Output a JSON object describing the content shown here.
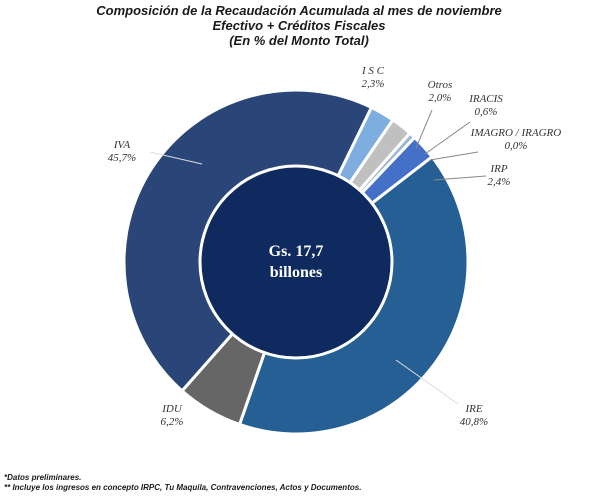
{
  "chart_data": {
    "type": "pie",
    "title": "Composición de la Recaudación Acumulada al mes de noviembre",
    "subtitle": "Efectivo + Créditos Fiscales",
    "subtitle2": "(En % del Monto Total)",
    "center_label_line1": "Gs. 17,7",
    "center_label_line2": "billones",
    "slices": [
      {
        "name": "I S C",
        "value_label": "2,3%",
        "value": 2.3,
        "color": "#7eaee0"
      },
      {
        "name": "Otros",
        "value_label": "2,0%",
        "value": 2.0,
        "color": "#c0c0c0"
      },
      {
        "name": "IRACIS",
        "value_label": "0,6%",
        "value": 0.6,
        "color": "#9fb7d6"
      },
      {
        "name": "IMAGRO / IRAGRO",
        "value_label": "0,0%",
        "value": 0.0,
        "color": "#5b6f8f"
      },
      {
        "name": "IRP",
        "value_label": "2,4%",
        "value": 2.4,
        "color": "#4470c8"
      },
      {
        "name": "IRE",
        "value_label": "40,8%",
        "value": 40.8,
        "color": "#265f93"
      },
      {
        "name": "IDU",
        "value_label": "6,2%",
        "value": 6.2,
        "color": "#666666"
      },
      {
        "name": "IVA",
        "value_label": "45,7%",
        "value": 45.7,
        "color": "#2a4577"
      }
    ],
    "center_color": "#0e2a5e"
  },
  "notes": {
    "line1": "*Datos preliminares.",
    "line2": "** Incluye los ingresos en concepto IRPC, Tu Maquila, Contravenciones, Actos y Documentos."
  }
}
